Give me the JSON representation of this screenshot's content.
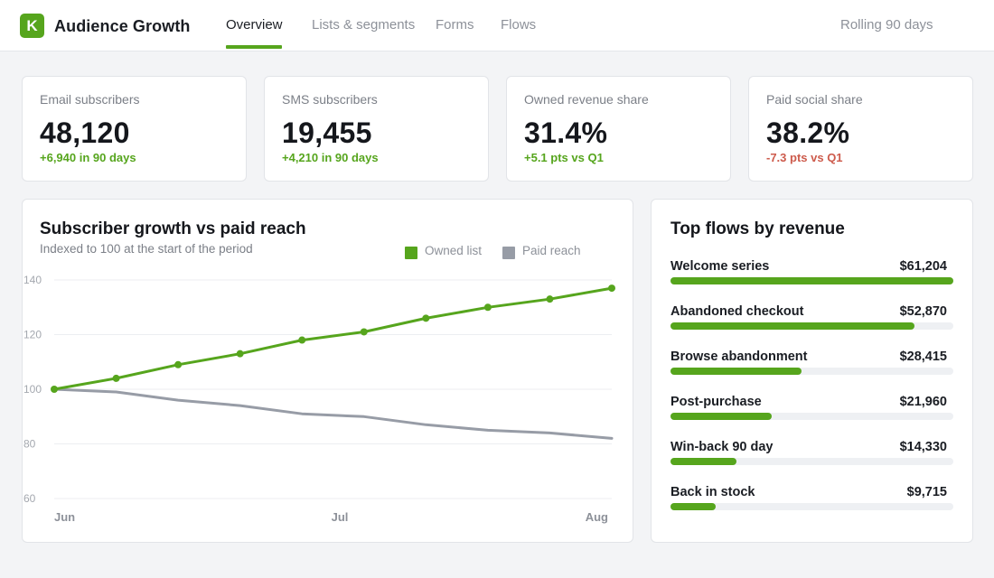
{
  "app": {
    "logo_letter": "K",
    "title": "Audience Growth"
  },
  "nav": {
    "tabs": [
      {
        "label": "Overview",
        "active": true
      },
      {
        "label": "Lists & segments",
        "active": false
      },
      {
        "label": "Forms",
        "active": false
      },
      {
        "label": "Flows",
        "active": false
      }
    ],
    "period_label": "Rolling 90 days"
  },
  "kpis": [
    {
      "label": "Email subscribers",
      "value": "48,120",
      "delta": "+6,940 in 90 days",
      "trend": "up"
    },
    {
      "label": "SMS subscribers",
      "value": "19,455",
      "delta": "+4,210 in 90 days",
      "trend": "up"
    },
    {
      "label": "Owned revenue share",
      "value": "31.4%",
      "delta": "+5.1 pts vs Q1",
      "trend": "up"
    },
    {
      "label": "Paid social share",
      "value": "38.2%",
      "delta": "-7.3 pts vs Q1",
      "trend": "down"
    }
  ],
  "growth_panel": {
    "title": "Subscriber growth vs paid reach",
    "subtitle": "Indexed to 100 at the start of the period"
  },
  "chart_data": {
    "type": "line",
    "title": "Subscriber growth vs paid reach",
    "subtitle": "Indexed to 100 at the start of the period",
    "xlabel": "",
    "ylabel": "",
    "x_tick_labels": [
      "Jun",
      "Jul",
      "Aug"
    ],
    "y_ticks": [
      60,
      80,
      100,
      120,
      140
    ],
    "ylim": [
      60,
      140
    ],
    "grid": true,
    "legend_position": "top-right",
    "series": [
      {
        "name": "Owned list",
        "color": "#56a51d",
        "markers": true,
        "values": [
          100,
          104,
          109,
          113,
          118,
          121,
          126,
          130,
          133,
          137
        ]
      },
      {
        "name": "Paid reach",
        "color": "#979ca6",
        "markers": false,
        "values": [
          100,
          99,
          96,
          94,
          91,
          90,
          87,
          85,
          84,
          82
        ]
      }
    ]
  },
  "flows_panel": {
    "title": "Top flows by revenue",
    "flows": [
      {
        "name": "Welcome series",
        "value": "$61,204",
        "share": 1.0
      },
      {
        "name": "Abandoned checkout",
        "value": "$52,870",
        "share": 0.864
      },
      {
        "name": "Browse abandonment",
        "value": "$28,415",
        "share": 0.464
      },
      {
        "name": "Post-purchase",
        "value": "$21,960",
        "share": 0.359
      },
      {
        "name": "Win-back 90 day",
        "value": "$14,330",
        "share": 0.234
      },
      {
        "name": "Back in stock",
        "value": "$9,715",
        "share": 0.159
      }
    ]
  }
}
